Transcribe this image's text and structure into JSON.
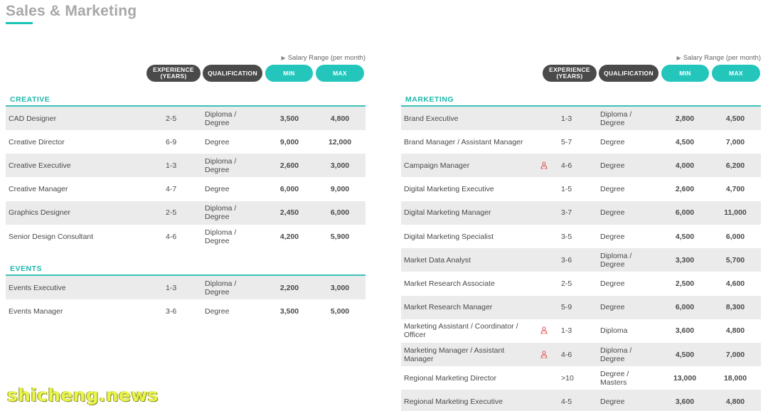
{
  "page": {
    "title": "Sales & Marketing",
    "accent": "#1cc3b7",
    "dark_pill": "#4a4a4a"
  },
  "headers": {
    "salary_range": "Salary Range (per month)",
    "experience": "EXPERIENCE (YEARS)",
    "qualification": "QUALIFICATION",
    "min": "MIN",
    "max": "MAX"
  },
  "left": {
    "sections": [
      {
        "label": "CREATIVE",
        "rows": [
          {
            "title": "CAD Designer",
            "exp": "2-5",
            "qual": "Diploma / Degree",
            "min": "3,500",
            "max": "4,800"
          },
          {
            "title": "Creative Director",
            "exp": "6-9",
            "qual": "Degree",
            "min": "9,000",
            "max": "12,000"
          },
          {
            "title": "Creative Executive",
            "exp": "1-3",
            "qual": "Diploma / Degree",
            "min": "2,600",
            "max": "3,000"
          },
          {
            "title": "Creative Manager",
            "exp": "4-7",
            "qual": "Degree",
            "min": "6,000",
            "max": "9,000"
          },
          {
            "title": "Graphics Designer",
            "exp": "2-5",
            "qual": "Diploma / Degree",
            "min": "2,450",
            "max": "6,000"
          },
          {
            "title": "Senior Design Consultant",
            "exp": "4-6",
            "qual": "Diploma / Degree",
            "min": "4,200",
            "max": "5,900"
          }
        ]
      },
      {
        "label": "EVENTS",
        "rows": [
          {
            "title": "Events Executive",
            "exp": "1-3",
            "qual": "Diploma / Degree",
            "min": "2,200",
            "max": "3,000"
          },
          {
            "title": "Events Manager",
            "exp": "3-6",
            "qual": "Degree",
            "min": "3,500",
            "max": "5,000"
          }
        ]
      }
    ]
  },
  "right": {
    "sections": [
      {
        "label": "MARKETING",
        "rows": [
          {
            "title": "Brand Executive",
            "exp": "1-3",
            "qual": "Diploma / Degree",
            "min": "2,800",
            "max": "4,500",
            "icon": ""
          },
          {
            "title": "Brand Manager / Assistant Manager",
            "exp": "5-7",
            "qual": "Degree",
            "min": "4,500",
            "max": "7,000",
            "icon": ""
          },
          {
            "title": "Campaign Manager",
            "exp": "4-6",
            "qual": "Degree",
            "min": "4,000",
            "max": "6,200",
            "icon": "people-icon"
          },
          {
            "title": "Digital Marketing Executive",
            "exp": "1-5",
            "qual": "Degree",
            "min": "2,600",
            "max": "4,700",
            "icon": ""
          },
          {
            "title": "Digital Marketing Manager",
            "exp": "3-7",
            "qual": "Degree",
            "min": "6,000",
            "max": "11,000",
            "icon": ""
          },
          {
            "title": "Digital Marketing Specialist",
            "exp": "3-5",
            "qual": "Degree",
            "min": "4,500",
            "max": "6,000",
            "icon": ""
          },
          {
            "title": "Market Data Analyst",
            "exp": "3-6",
            "qual": "Diploma / Degree",
            "min": "3,300",
            "max": "5,700",
            "icon": ""
          },
          {
            "title": "Market Research Associate",
            "exp": "2-5",
            "qual": "Degree",
            "min": "2,500",
            "max": "4,600",
            "icon": ""
          },
          {
            "title": "Market Research Manager",
            "exp": "5-9",
            "qual": "Degree",
            "min": "6,000",
            "max": "8,300",
            "icon": ""
          },
          {
            "title": "Marketing Assistant / Coordinator / Officer",
            "exp": "1-3",
            "qual": "Diploma",
            "min": "3,600",
            "max": "4,800",
            "icon": "people-icon"
          },
          {
            "title": "Marketing Manager / Assistant Manager",
            "exp": "4-6",
            "qual": "Diploma / Degree",
            "min": "4,500",
            "max": "7,000",
            "icon": "people-icon"
          },
          {
            "title": "Regional Marketing Director",
            "exp": ">10",
            "qual": "Degree / Masters",
            "min": "13,000",
            "max": "18,000",
            "icon": ""
          },
          {
            "title": "Regional Marketing Executive",
            "exp": "4-5",
            "qual": "Degree",
            "min": "3,600",
            "max": "4,800",
            "icon": ""
          }
        ]
      }
    ]
  },
  "watermark": "shicheng.news"
}
